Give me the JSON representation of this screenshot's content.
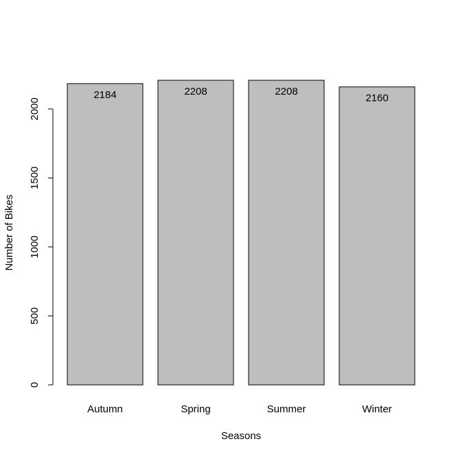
{
  "chart_data": {
    "type": "bar",
    "title": "",
    "xlabel": "Seasons",
    "ylabel": "Number of Bikes",
    "categories": [
      "Autumn",
      "Spring",
      "Summer",
      "Winter"
    ],
    "values": [
      2184,
      2208,
      2208,
      2160
    ],
    "value_labels": [
      "2184",
      "2208",
      "2208",
      "2160"
    ],
    "ylim": [
      0,
      2208
    ],
    "yticks": [
      0,
      500,
      1000,
      1500,
      2000
    ],
    "ytick_labels": [
      "0",
      "500",
      "1000",
      "1500",
      "2000"
    ],
    "grid": false,
    "legend": "none",
    "bar_color": "#bebebe",
    "bar_border_color": "#000000"
  }
}
